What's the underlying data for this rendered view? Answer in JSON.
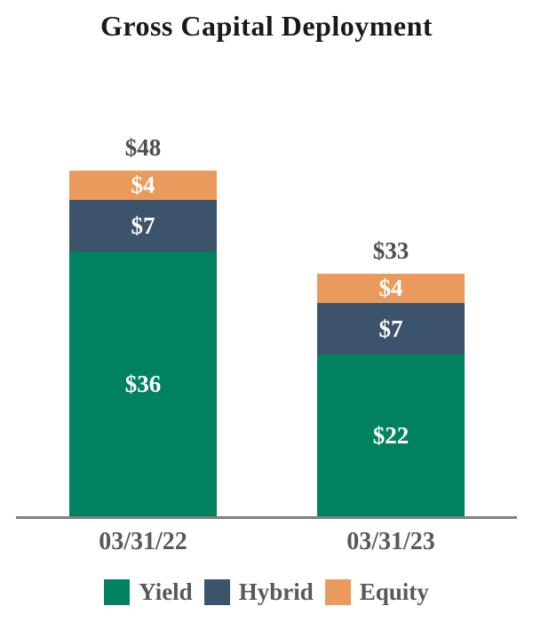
{
  "title": "Gross Capital Deployment",
  "chart_data": {
    "type": "bar",
    "stacked": true,
    "title": "Gross Capital Deployment",
    "categories": [
      "03/31/22",
      "03/31/23"
    ],
    "series": [
      {
        "name": "Yield",
        "color": "#00815F",
        "values": [
          36,
          22
        ],
        "data_labels": [
          "$36",
          "$22"
        ]
      },
      {
        "name": "Hybrid",
        "color": "#3B546C",
        "values": [
          7,
          7
        ],
        "data_labels": [
          "$7",
          "$7"
        ]
      },
      {
        "name": "Equity",
        "color": "#EA9A5D",
        "values": [
          4,
          4
        ],
        "data_labels": [
          "$4",
          "$4"
        ]
      }
    ],
    "totals": [
      48,
      33
    ],
    "total_labels": [
      "$48",
      "$33"
    ],
    "value_prefix": "$",
    "xlabel": "",
    "ylabel": "",
    "ylim": [
      0,
      52
    ],
    "grid": false,
    "legend_position": "bottom",
    "legend_entries": [
      "Yield",
      "Hybrid",
      "Equity"
    ]
  },
  "colors": {
    "title_text": "#1A1A1A",
    "total_label_text": "#4F4F4F",
    "segment_label_text": "#FFFFFF",
    "axis_label_text": "#595959",
    "legend_text": "#595959",
    "axis_line": "#808080",
    "background": "#FFFFFF"
  }
}
